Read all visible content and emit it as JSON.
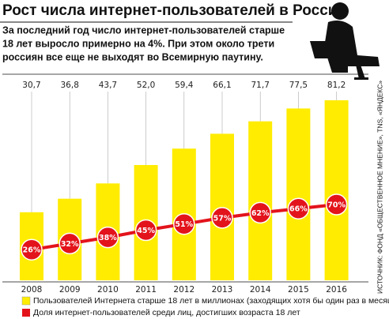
{
  "chart_data": {
    "type": "bar_line",
    "title": "Рост числа интернет-пользователей в России",
    "subtitle": [
      "За последний год число интернет-пользователей старше",
      "18 лет выросло примерно на 4%. При этом около трети",
      "россиян все еще не выходят во Всемирную паутину."
    ],
    "source": "ИСТОЧНИК: ФОНД «ОБЩЕСТВЕННОЕ МНЕНИЕ», TNS, «ЯНДЕКС»",
    "categories": [
      "2008",
      "2009",
      "2010",
      "2011",
      "2012",
      "2013",
      "2014",
      "2015",
      "2016"
    ],
    "series": [
      {
        "name": "Пользователей Интернета старше 18 лет в миллионах (заходящих хотя бы один раз в месяц)",
        "color": "#ffec00",
        "values": [
          30.7,
          36.8,
          43.7,
          52.0,
          59.4,
          66.1,
          71.7,
          77.5,
          81.2
        ],
        "value_labels": [
          "30,7",
          "36,8",
          "43,7",
          "52,0",
          "59,4",
          "66,1",
          "71,7",
          "77,5",
          "81,2"
        ]
      },
      {
        "name": "Доля интернет-пользователей среди лиц, достигших возраста 18 лет",
        "color": "#e3131b",
        "values": [
          26,
          32,
          38,
          45,
          51,
          57,
          62,
          66,
          70
        ],
        "value_labels": [
          "26%",
          "32%",
          "38%",
          "45%",
          "51%",
          "57%",
          "62%",
          "66%",
          "70%"
        ]
      }
    ]
  }
}
